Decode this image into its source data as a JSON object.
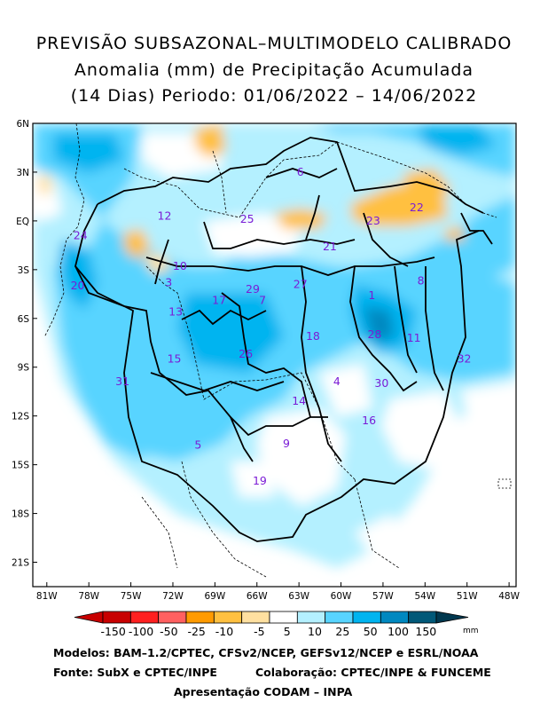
{
  "title": {
    "line1": "PREVISÃO SUBSAZONAL–MULTIMODELO CALIBRADO",
    "line2": "Anomalia (mm) de Precipitação Acumulada",
    "line3": "(14 Dias) Periodo: 01/06/2022 – 14/06/2022"
  },
  "lat_labels": [
    "6N",
    "3N",
    "EQ",
    "3S",
    "6S",
    "9S",
    "12S",
    "15S",
    "18S",
    "21S"
  ],
  "lon_labels": [
    "81W",
    "78W",
    "75W",
    "72W",
    "69W",
    "66W",
    "63W",
    "60W",
    "57W",
    "54W",
    "51W",
    "48W"
  ],
  "colorbar": {
    "ticks": [
      "-150",
      "-100",
      "-50",
      "-25",
      "-10",
      "-5",
      "5",
      "10",
      "25",
      "50",
      "100",
      "150"
    ],
    "unit": "mm",
    "colors": [
      "#c80000",
      "#ff2020",
      "#ff6060",
      "#ff9a00",
      "#ffc040",
      "#ffe0a0",
      "#ffffff",
      "#b4f0ff",
      "#58d4ff",
      "#00b4f0",
      "#0088c0",
      "#005878"
    ]
  },
  "regions": [
    {
      "id": "1",
      "lon": -57.8,
      "lat": -4.6
    },
    {
      "id": "3",
      "lon": -72.3,
      "lat": -3.8
    },
    {
      "id": "4",
      "lon": -60.3,
      "lat": -9.9
    },
    {
      "id": "5",
      "lon": -70.2,
      "lat": -13.8
    },
    {
      "id": "6",
      "lon": -62.9,
      "lat": 3.0
    },
    {
      "id": "7",
      "lon": -65.6,
      "lat": -4.9
    },
    {
      "id": "8",
      "lon": -54.3,
      "lat": -3.7
    },
    {
      "id": "9",
      "lon": -63.9,
      "lat": -13.7
    },
    {
      "id": "10",
      "lon": -71.5,
      "lat": -2.8
    },
    {
      "id": "11",
      "lon": -54.8,
      "lat": -7.2
    },
    {
      "id": "12",
      "lon": -72.6,
      "lat": 0.3
    },
    {
      "id": "13",
      "lon": -71.8,
      "lat": -5.6
    },
    {
      "id": "14",
      "lon": -63.0,
      "lat": -11.1
    },
    {
      "id": "15",
      "lon": -71.9,
      "lat": -8.5
    },
    {
      "id": "16",
      "lon": -58.0,
      "lat": -12.3
    },
    {
      "id": "17",
      "lon": -68.7,
      "lat": -4.9
    },
    {
      "id": "18",
      "lon": -62.0,
      "lat": -7.1
    },
    {
      "id": "19",
      "lon": -65.8,
      "lat": -16.0
    },
    {
      "id": "20",
      "lon": -78.8,
      "lat": -4.0
    },
    {
      "id": "21",
      "lon": -60.8,
      "lat": -1.6
    },
    {
      "id": "22",
      "lon": -54.6,
      "lat": 0.8
    },
    {
      "id": "23",
      "lon": -57.7,
      "lat": 0.0
    },
    {
      "id": "24",
      "lon": -78.6,
      "lat": -0.9
    },
    {
      "id": "25",
      "lon": -66.7,
      "lat": 0.1
    },
    {
      "id": "26",
      "lon": -66.8,
      "lat": -8.2
    },
    {
      "id": "27",
      "lon": -62.9,
      "lat": -3.9
    },
    {
      "id": "28",
      "lon": -57.6,
      "lat": -7.0
    },
    {
      "id": "29",
      "lon": -66.3,
      "lat": -4.2
    },
    {
      "id": "30",
      "lon": -57.1,
      "lat": -10.0
    },
    {
      "id": "31",
      "lon": -75.6,
      "lat": -9.9
    },
    {
      "id": "32",
      "lon": -51.2,
      "lat": -8.5
    }
  ],
  "footer": {
    "models": "Modelos: BAM–1.2/CPTEC, CFSv2/NCEP, GEFSv12/NCEP e ESRL/NOAA",
    "source": "Fonte: SubX e CPTEC/INPE",
    "collab": "Colaboração: CPTEC/INPE & FUNCEME",
    "presentation": "Apresentação CODAM – INPA"
  }
}
